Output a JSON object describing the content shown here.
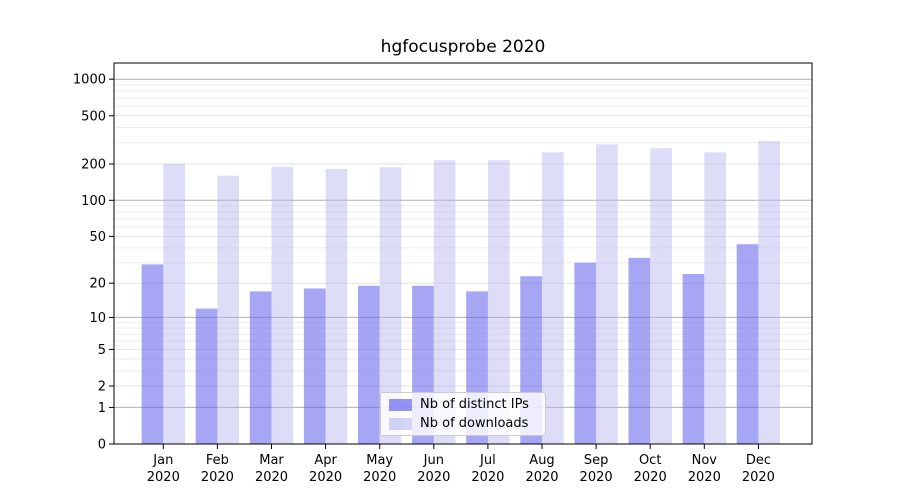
{
  "title": "hgfocusprobe 2020",
  "legend": {
    "items": [
      {
        "label": "Nb of distinct IPs",
        "color": "#6363ed",
        "opacity": 0.57
      },
      {
        "label": "Nb of downloads",
        "color": "#b4b4f0",
        "opacity": 0.45
      }
    ]
  },
  "colors": {
    "ips_bar_on_white": "#a5a5f6",
    "downloads_bar_on_white": "#dbdbf8",
    "major_gridline": "#b0b0b0",
    "labeled_gridline": "#e2e2e2",
    "minor_gridline": "#ededed",
    "axis": "#000000"
  },
  "chart_data": {
    "type": "bar",
    "title": "hgfocusprobe 2020",
    "categories": [
      "Jan 2020",
      "Feb 2020",
      "Mar 2020",
      "Apr 2020",
      "May 2020",
      "Jun 2020",
      "Jul 2020",
      "Aug 2020",
      "Sep 2020",
      "Oct 2020",
      "Nov 2020",
      "Dec 2020"
    ],
    "series": [
      {
        "name": "Nb of distinct IPs",
        "values": [
          29,
          12,
          17,
          18,
          19,
          19,
          17,
          23,
          30,
          33,
          24,
          43
        ]
      },
      {
        "name": "Nb of downloads",
        "values": [
          200,
          160,
          190,
          182,
          188,
          215,
          215,
          250,
          290,
          270,
          250,
          310
        ]
      }
    ],
    "xlabel": "",
    "ylabel": "",
    "yscale": "log1p",
    "yticks": [
      0,
      1,
      2,
      5,
      10,
      20,
      50,
      100,
      200,
      500,
      1000
    ],
    "minor_yticks": [
      3,
      4,
      6,
      7,
      8,
      9,
      30,
      40,
      60,
      70,
      80,
      90,
      300,
      400,
      600,
      700,
      800,
      900
    ],
    "ylim": [
      0,
      1360
    ],
    "grid": "on",
    "legend_position": "lower center"
  }
}
